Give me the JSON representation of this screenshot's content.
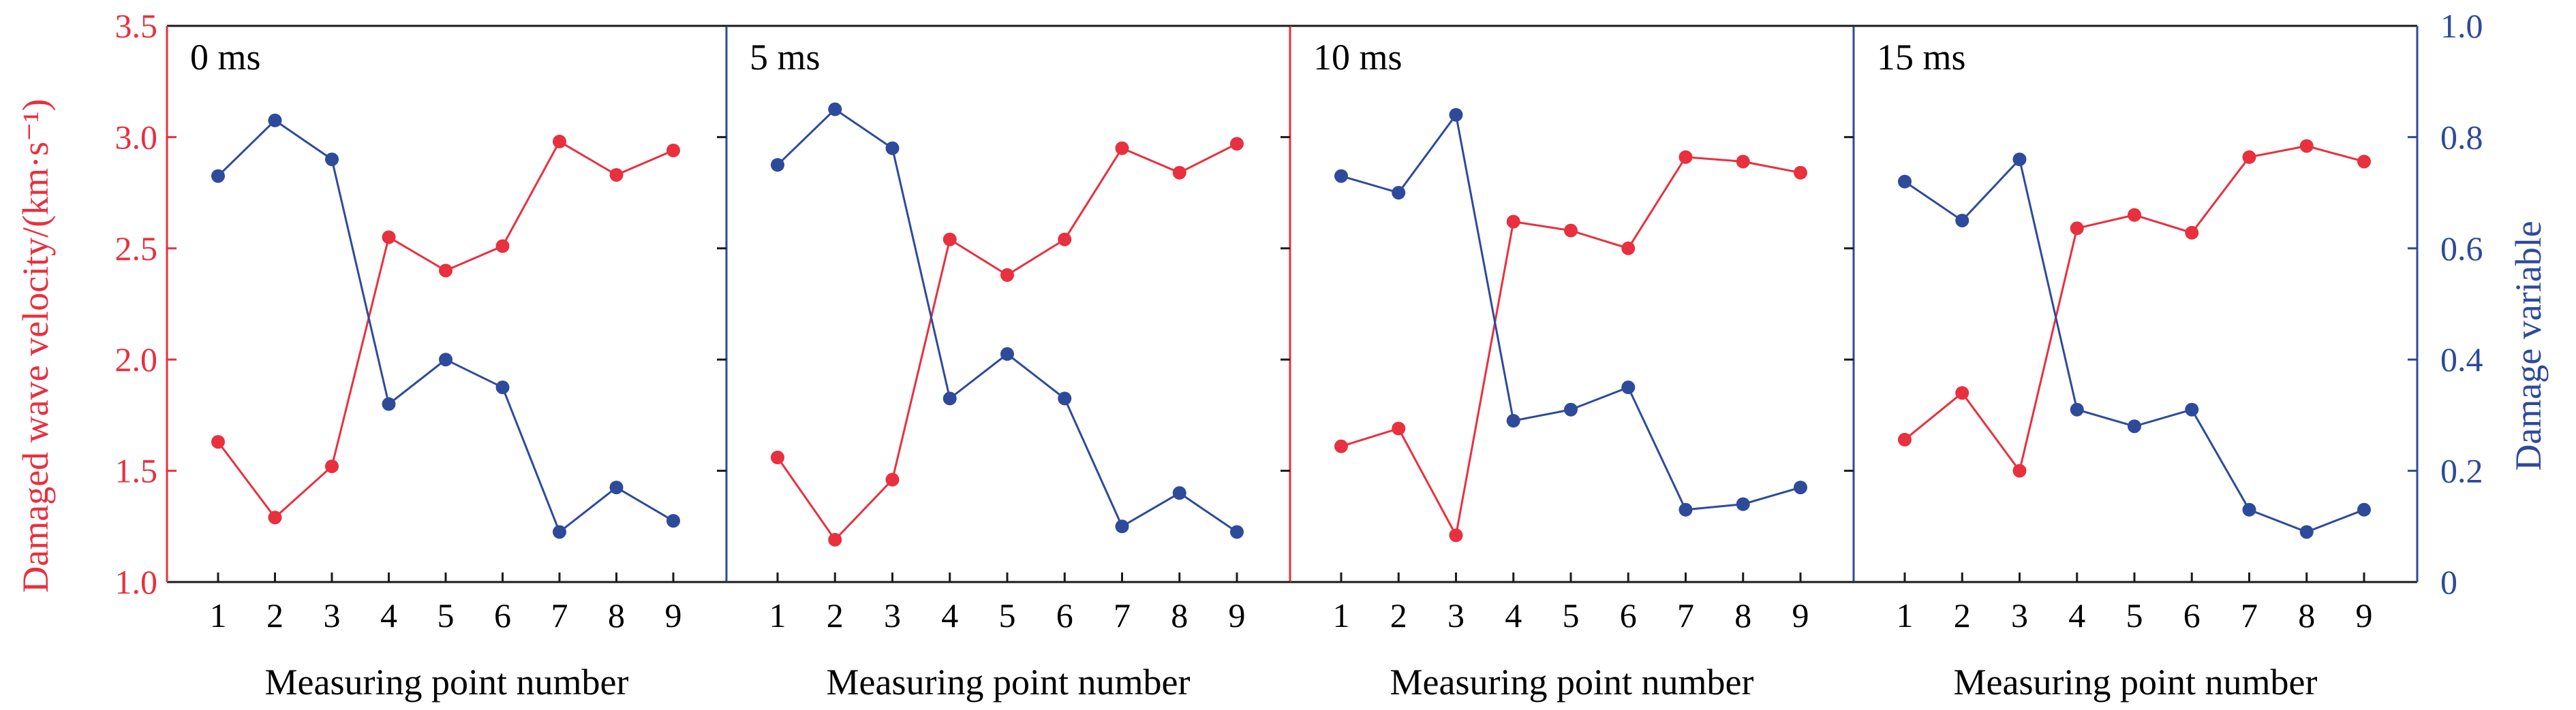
{
  "colors": {
    "velocity": "#e8303f",
    "damage": "#2e4a9a",
    "axis_black": "#1a1a1a"
  },
  "left_axis": {
    "label": "Damaged wave velocity/(km·s⁻¹)",
    "ylim": [
      1.0,
      3.5
    ],
    "ticks": [
      "1.0",
      "1.5",
      "2.0",
      "2.5",
      "3.0",
      "3.5"
    ]
  },
  "right_axis": {
    "label": "Damage variable",
    "ylim": [
      0,
      1.0
    ],
    "ticks": [
      "0",
      "0.2",
      "0.4",
      "0.6",
      "0.8",
      "1.0"
    ]
  },
  "x_axis": {
    "label": "Measuring point number",
    "categories": [
      "1",
      "2",
      "3",
      "4",
      "5",
      "6",
      "7",
      "8",
      "9"
    ]
  },
  "chart_data": [
    {
      "type": "line",
      "panel": "0 ms",
      "categories": [
        "1",
        "2",
        "3",
        "4",
        "5",
        "6",
        "7",
        "8",
        "9"
      ],
      "series": [
        {
          "axis": "left",
          "values": [
            1.63,
            1.29,
            1.52,
            2.55,
            2.4,
            2.51,
            2.98,
            2.83,
            2.94
          ]
        },
        {
          "axis": "right",
          "values": [
            0.73,
            0.83,
            0.76,
            0.32,
            0.4,
            0.35,
            0.09,
            0.17,
            0.11
          ]
        }
      ],
      "xlabel": "Measuring point number"
    },
    {
      "type": "line",
      "panel": "5 ms",
      "categories": [
        "1",
        "2",
        "3",
        "4",
        "5",
        "6",
        "7",
        "8",
        "9"
      ],
      "series": [
        {
          "axis": "left",
          "values": [
            1.56,
            1.19,
            1.46,
            2.54,
            2.38,
            2.54,
            2.95,
            2.84,
            2.97
          ]
        },
        {
          "axis": "right",
          "values": [
            0.75,
            0.85,
            0.78,
            0.33,
            0.41,
            0.33,
            0.1,
            0.16,
            0.09
          ]
        }
      ],
      "xlabel": "Measuring point number"
    },
    {
      "type": "line",
      "panel": "10 ms",
      "categories": [
        "1",
        "2",
        "3",
        "4",
        "5",
        "6",
        "7",
        "8",
        "9"
      ],
      "series": [
        {
          "axis": "left",
          "values": [
            1.61,
            1.69,
            1.21,
            2.62,
            2.58,
            2.5,
            2.91,
            2.89,
            2.84
          ]
        },
        {
          "axis": "right",
          "values": [
            0.73,
            0.7,
            0.84,
            0.29,
            0.31,
            0.35,
            0.13,
            0.14,
            0.17
          ]
        }
      ],
      "xlabel": "Measuring point number"
    },
    {
      "type": "line",
      "panel": "15 ms",
      "categories": [
        "1",
        "2",
        "3",
        "4",
        "5",
        "6",
        "7",
        "8",
        "9"
      ],
      "series": [
        {
          "axis": "left",
          "values": [
            1.64,
            1.85,
            1.5,
            2.59,
            2.65,
            2.57,
            2.91,
            2.96,
            2.89
          ]
        },
        {
          "axis": "right",
          "values": [
            0.72,
            0.65,
            0.76,
            0.31,
            0.28,
            0.31,
            0.13,
            0.09,
            0.13
          ]
        }
      ],
      "xlabel": "Measuring point number"
    }
  ]
}
